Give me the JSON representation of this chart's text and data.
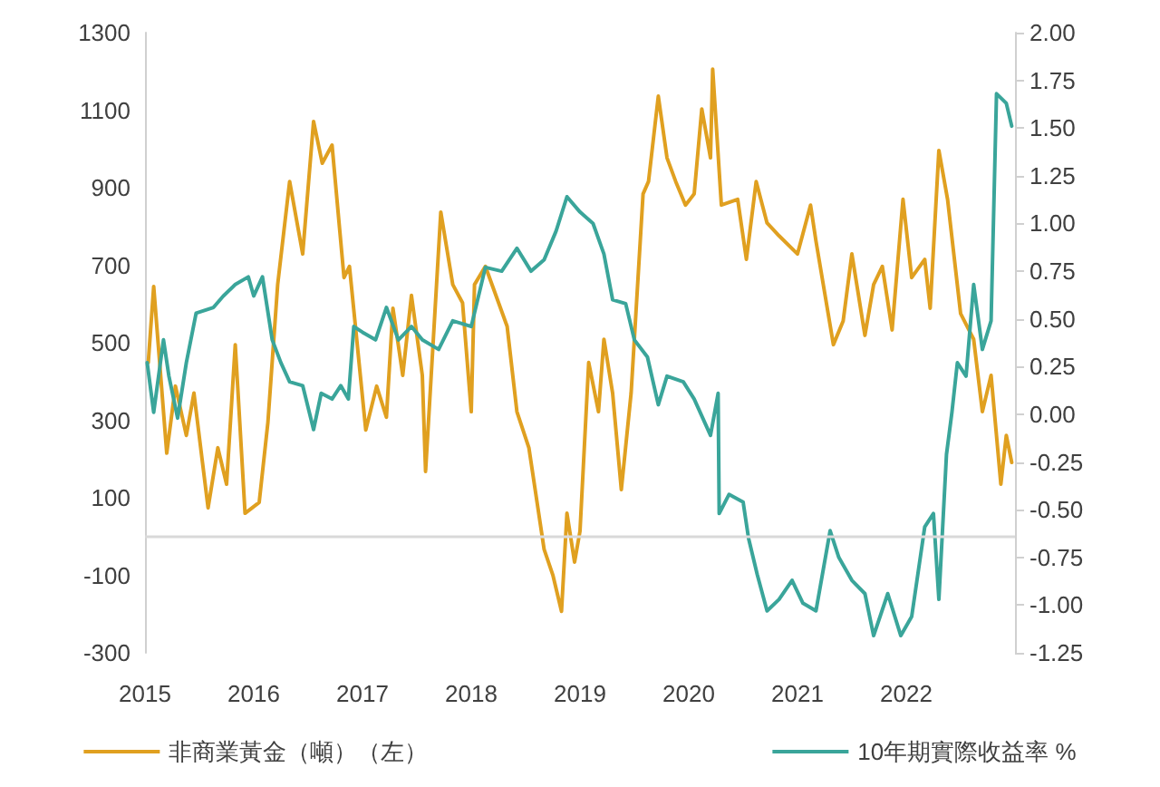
{
  "chart_data": {
    "type": "line",
    "xlim": [
      2015,
      2023
    ],
    "xticks": [
      2015,
      2016,
      2017,
      2018,
      2019,
      2020,
      2021,
      2022
    ],
    "ylim": [
      -300,
      1300
    ],
    "yticks": [
      -300,
      -100,
      100,
      300,
      500,
      700,
      900,
      1100,
      1300
    ],
    "y2lim": [
      -1.25,
      2
    ],
    "y2ticks": [
      {
        "value": -1.25,
        "label": "-1.25"
      },
      {
        "value": -1,
        "label": "-1.00"
      },
      {
        "value": -0.75,
        "label": "-0.75"
      },
      {
        "value": -0.5,
        "label": "-0.50"
      },
      {
        "value": -0.25,
        "label": "-0.25"
      },
      {
        "value": 0,
        "label": "0.00"
      },
      {
        "value": 0.25,
        "label": "0.25"
      },
      {
        "value": 0.5,
        "label": "0.50"
      },
      {
        "value": 0.75,
        "label": "0.75"
      },
      {
        "value": 1,
        "label": "1.00"
      },
      {
        "value": 1.25,
        "label": "1.25"
      },
      {
        "value": 1.5,
        "label": "1.50"
      },
      {
        "value": 1.75,
        "label": "1.75"
      },
      {
        "value": 2,
        "label": "2.00"
      }
    ],
    "grid": false,
    "legend": "bottom",
    "marker": "none",
    "line_style": "solid",
    "ref_lines": [
      {
        "axis": "y",
        "value": 0,
        "color": "#d9d9d9"
      }
    ],
    "series": [
      {
        "name": "非商業黃金（噸）（左）",
        "color": "#e0a020",
        "x": [
          2015.03,
          2015.08,
          2015.2,
          2015.28,
          2015.38,
          2015.45,
          2015.58,
          2015.67,
          2015.75,
          2015.83,
          2015.92,
          2016.05,
          2016.13,
          2016.22,
          2016.33,
          2016.45,
          2016.55,
          2016.63,
          2016.72,
          2016.83,
          2016.88,
          2017.03,
          2017.13,
          2017.22,
          2017.28,
          2017.37,
          2017.45,
          2017.55,
          2017.58,
          2017.72,
          2017.83,
          2017.92,
          2018.0,
          2018.03,
          2018.13,
          2018.33,
          2018.42,
          2018.53,
          2018.67,
          2018.75,
          2018.83,
          2018.88,
          2018.95,
          2019.0,
          2019.08,
          2019.17,
          2019.22,
          2019.3,
          2019.38,
          2019.47,
          2019.58,
          2019.63,
          2019.72,
          2019.8,
          2019.88,
          2019.97,
          2020.05,
          2020.12,
          2020.2,
          2020.22,
          2020.3,
          2020.45,
          2020.53,
          2020.62,
          2020.72,
          2020.83,
          2021.0,
          2021.12,
          2021.17,
          2021.33,
          2021.42,
          2021.5,
          2021.62,
          2021.7,
          2021.78,
          2021.87,
          2021.97,
          2022.05,
          2022.17,
          2022.22,
          2022.3,
          2022.38,
          2022.5,
          2022.62,
          2022.7,
          2022.78,
          2022.87,
          2022.92,
          2022.97
        ],
        "values": [
          449,
          645,
          215,
          388,
          261,
          370,
          74,
          229,
          135,
          495,
          60,
          88,
          294,
          650,
          916,
          729,
          1071,
          963,
          1010,
          668,
          697,
          275,
          388,
          308,
          589,
          416,
          622,
          416,
          168,
          837,
          650,
          603,
          322,
          650,
          697,
          542,
          322,
          229,
          -33,
          -99,
          -193,
          60,
          -66,
          14,
          449,
          322,
          509,
          370,
          121,
          370,
          884,
          916,
          1136,
          977,
          916,
          855,
          884,
          1103,
          977,
          1206,
          855,
          870,
          715,
          916,
          809,
          776,
          729,
          855,
          762,
          495,
          556,
          729,
          519,
          650,
          697,
          533,
          870,
          668,
          715,
          589,
          996,
          870,
          575,
          509,
          322,
          416,
          135,
          261,
          191
        ]
      },
      {
        "name": "10年期實際收益率 %",
        "color": "#3aa59a",
        "axis": "y2",
        "x": [
          2015.02,
          2015.08,
          2015.17,
          2015.22,
          2015.3,
          2015.38,
          2015.47,
          2015.63,
          2015.72,
          2015.83,
          2015.95,
          2016.0,
          2016.08,
          2016.17,
          2016.25,
          2016.33,
          2016.45,
          2016.55,
          2016.62,
          2016.72,
          2016.8,
          2016.87,
          2016.92,
          2017.0,
          2017.12,
          2017.22,
          2017.33,
          2017.45,
          2017.55,
          2017.7,
          2017.83,
          2018.0,
          2018.13,
          2018.28,
          2018.42,
          2018.55,
          2018.67,
          2018.78,
          2018.88,
          2019.0,
          2019.12,
          2019.22,
          2019.3,
          2019.42,
          2019.5,
          2019.62,
          2019.72,
          2019.8,
          2019.95,
          2020.05,
          2020.2,
          2020.27,
          2020.28,
          2020.37,
          2020.5,
          2020.55,
          2020.63,
          2020.72,
          2020.83,
          2020.95,
          2021.05,
          2021.17,
          2021.3,
          2021.38,
          2021.5,
          2021.62,
          2021.7,
          2021.83,
          2021.95,
          2022.05,
          2022.17,
          2022.25,
          2022.3,
          2022.37,
          2022.42,
          2022.47,
          2022.55,
          2022.62,
          2022.7,
          2022.78,
          2022.83,
          2022.92,
          2022.97
        ],
        "values": [
          0.27,
          0.01,
          0.39,
          0.2,
          -0.02,
          0.27,
          0.53,
          0.56,
          0.62,
          0.68,
          0.72,
          0.62,
          0.72,
          0.39,
          0.27,
          0.17,
          0.15,
          -0.08,
          0.11,
          0.08,
          0.15,
          0.08,
          0.46,
          0.43,
          0.39,
          0.56,
          0.39,
          0.46,
          0.39,
          0.34,
          0.49,
          0.46,
          0.77,
          0.75,
          0.87,
          0.75,
          0.81,
          0.96,
          1.14,
          1.06,
          1.0,
          0.84,
          0.6,
          0.58,
          0.39,
          0.3,
          0.05,
          0.2,
          0.17,
          0.08,
          -0.11,
          0.11,
          -0.52,
          -0.42,
          -0.46,
          -0.65,
          -0.84,
          -1.03,
          -0.97,
          -0.87,
          -0.99,
          -1.03,
          -0.61,
          -0.75,
          -0.87,
          -0.94,
          -1.16,
          -0.94,
          -1.16,
          -1.06,
          -0.59,
          -0.52,
          -0.97,
          -0.21,
          0.01,
          0.27,
          0.2,
          0.68,
          0.34,
          0.49,
          1.68,
          1.63,
          1.51
        ]
      }
    ]
  }
}
